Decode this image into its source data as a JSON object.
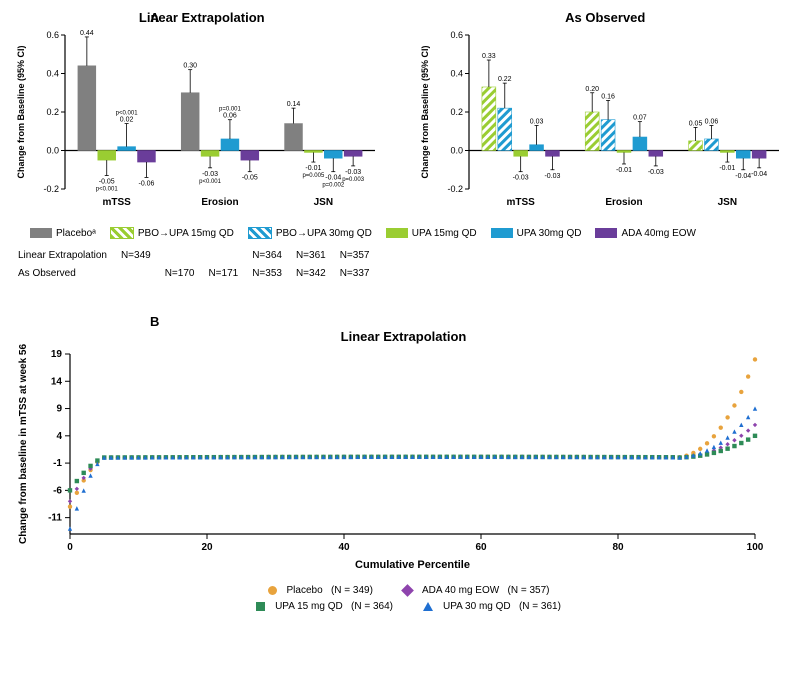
{
  "panelA": {
    "label": "A",
    "left": {
      "title": "Linear Extrapolation",
      "ylabel": "Change from Baseline (95% CI)",
      "ylim": [
        -0.2,
        0.6
      ],
      "yticks": [
        -0.2,
        0.0,
        0.2,
        0.4,
        0.6
      ],
      "groups": [
        "mTSS",
        "Erosion",
        "JSN"
      ],
      "series": [
        {
          "key": "placebo",
          "label": "Placeboᵃ",
          "color": "#808080",
          "hatch": false
        },
        {
          "key": "upa15",
          "label": "UPA 15mg QD",
          "color": "#9acd32",
          "hatch": false
        },
        {
          "key": "upa30",
          "label": "UPA 30mg QD",
          "color": "#1f9bd1",
          "hatch": false
        },
        {
          "key": "ada",
          "label": "ADA 40mg EOW",
          "color": "#6a3d9a",
          "hatch": false
        }
      ],
      "data": {
        "mTSS": {
          "placebo": 0.44,
          "upa15": -0.05,
          "upa30": 0.02,
          "ada": -0.06
        },
        "Erosion": {
          "placebo": 0.3,
          "upa15": -0.03,
          "upa30": 0.06,
          "ada": -0.05
        },
        "JSN": {
          "placebo": 0.14,
          "upa15": -0.01,
          "upa30": -0.04,
          "ada": -0.03
        }
      },
      "errors": {
        "mTSS": {
          "placebo": 0.15,
          "upa15": 0.08,
          "upa30": 0.12,
          "ada": 0.08
        },
        "Erosion": {
          "placebo": 0.12,
          "upa15": 0.06,
          "upa30": 0.1,
          "ada": 0.06
        },
        "JSN": {
          "placebo": 0.08,
          "upa15": 0.05,
          "upa30": 0.07,
          "ada": 0.05
        }
      },
      "pvalues": {
        "mTSS": {
          "upa15": "p<0.001",
          "upa30": "p<0.001",
          "ada": ""
        },
        "Erosion": {
          "upa15": "p<0.001",
          "upa30": "p=0.001",
          "ada": ""
        },
        "JSN": {
          "upa15": "p=0.005",
          "upa30": "p=0.002",
          "ada": "p=0.003"
        }
      }
    },
    "right": {
      "title": "As Observed",
      "ylabel": "Change from Baseline (95% CI)",
      "ylim": [
        -0.2,
        0.6
      ],
      "yticks": [
        -0.2,
        0.0,
        0.2,
        0.4,
        0.6
      ],
      "groups": [
        "mTSS",
        "Erosion",
        "JSN"
      ],
      "series": [
        {
          "key": "pbo15",
          "label": "PBO→UPA 15mg QD",
          "color": "#9acd32",
          "hatch": true
        },
        {
          "key": "pbo30",
          "label": "PBO→UPA 30mg QD",
          "color": "#1f9bd1",
          "hatch": true
        },
        {
          "key": "upa15",
          "label": "UPA 15mg QD",
          "color": "#9acd32",
          "hatch": false
        },
        {
          "key": "upa30",
          "label": "UPA 30mg QD",
          "color": "#1f9bd1",
          "hatch": false
        },
        {
          "key": "ada",
          "label": "ADA 40mg EOW",
          "color": "#6a3d9a",
          "hatch": false
        }
      ],
      "data": {
        "mTSS": {
          "pbo15": 0.33,
          "pbo30": 0.22,
          "upa15": -0.03,
          "upa30": 0.03,
          "ada": -0.03
        },
        "Erosion": {
          "pbo15": 0.2,
          "pbo30": 0.16,
          "upa15": -0.01,
          "upa30": 0.07,
          "ada": -0.03
        },
        "JSN": {
          "pbo15": 0.05,
          "pbo30": 0.06,
          "upa15": -0.01,
          "upa30": -0.04,
          "ada": -0.04
        }
      },
      "errors": {
        "mTSS": {
          "pbo15": 0.14,
          "pbo30": 0.13,
          "upa15": 0.08,
          "upa30": 0.1,
          "ada": 0.07
        },
        "Erosion": {
          "pbo15": 0.1,
          "pbo30": 0.1,
          "upa15": 0.06,
          "upa30": 0.08,
          "ada": 0.05
        },
        "JSN": {
          "pbo15": 0.07,
          "pbo30": 0.07,
          "upa15": 0.05,
          "upa30": 0.06,
          "ada": 0.05
        }
      }
    },
    "legend_n": {
      "headers": [
        "Linear Extrapolation",
        "As Observed"
      ],
      "cols": [
        {
          "label": "Placeboᵃ",
          "n1": "N=349",
          "n2": ""
        },
        {
          "label": "PBO→UPA 15mg QD",
          "n1": "",
          "n2": "N=170"
        },
        {
          "label": "PBO→UPA 30mg QD",
          "n1": "",
          "n2": "N=171"
        },
        {
          "label": "UPA 15mg QD",
          "n1": "N=364",
          "n2": "N=353"
        },
        {
          "label": "UPA 30mg QD",
          "n1": "N=361",
          "n2": "N=342"
        },
        {
          "label": "ADA 40mg EOW",
          "n1": "N=357",
          "n2": "N=337"
        }
      ]
    }
  },
  "panelB": {
    "label": "B",
    "title": "Linear Extrapolation",
    "xlabel": "Cumulative Percentile",
    "ylabel": "Change from baseline in mTSS at week 56",
    "xlim": [
      0,
      100
    ],
    "xticks": [
      0,
      20,
      40,
      60,
      80,
      100
    ],
    "ylim": [
      -14,
      19
    ],
    "yticks": [
      -11,
      -6,
      -1,
      4,
      9,
      14,
      19
    ],
    "series": [
      {
        "key": "placebo",
        "label": "Placebo",
        "N": "(N = 349)",
        "color": "#e8a33d",
        "marker": "circle"
      },
      {
        "key": "ada",
        "label": "ADA 40 mg EOW",
        "N": "(N = 357)",
        "color": "#8e44ad",
        "marker": "diamond"
      },
      {
        "key": "upa15",
        "label": "UPA 15 mg QD",
        "N": "(N = 364)",
        "color": "#2e8b57",
        "marker": "square"
      },
      {
        "key": "upa30",
        "label": "UPA 30 mg QD",
        "N": "(N = 361)",
        "color": "#1f6fd1",
        "marker": "triangle"
      }
    ]
  },
  "colors": {
    "axis": "#000000",
    "background": "#ffffff"
  }
}
